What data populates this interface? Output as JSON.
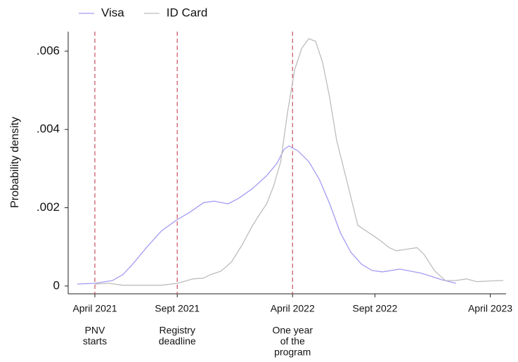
{
  "chart_data": {
    "type": "line",
    "y_label": "Probability density",
    "xlim": [
      2021.115,
      2023.33
    ],
    "ylim": [
      -0.0002,
      0.0065
    ],
    "xticks": [
      {
        "value": 2021.25,
        "label": "April 2021"
      },
      {
        "value": 2021.6667,
        "label": "Sept 2021"
      },
      {
        "value": 2022.25,
        "label": "April 2022"
      },
      {
        "value": 2022.6667,
        "label": "Sept 2022"
      },
      {
        "value": 2023.25,
        "label": "April 2023"
      }
    ],
    "yticks": [
      0,
      {
        "value": 0.002,
        "label": ".002"
      },
      {
        "value": 0.004,
        "label": ".004"
      },
      {
        "value": 0.006,
        "label": ".006"
      }
    ],
    "annotation_color": "#c8505f",
    "annotations": [
      {
        "x": 2021.25,
        "lines": [
          "PNV",
          "starts"
        ]
      },
      {
        "x": 2021.6667,
        "lines": [
          "Registry",
          "deadline"
        ]
      },
      {
        "x": 2022.25,
        "lines": [
          "One year",
          "of the",
          "program"
        ]
      }
    ],
    "series": [
      {
        "name": "Visa",
        "color": "#a39cf2",
        "x": [
          2021.161,
          2021.25,
          2021.339,
          2021.392,
          2021.445,
          2021.516,
          2021.587,
          2021.668,
          2021.729,
          2021.8,
          2021.853,
          2021.924,
          2021.977,
          2022.048,
          2022.119,
          2022.172,
          2022.207,
          2022.232,
          2022.278,
          2022.332,
          2022.385,
          2022.438,
          2022.491,
          2022.544,
          2022.598,
          2022.651,
          2022.704,
          2022.793,
          2022.899,
          2023.005,
          2023.076
        ],
        "values": [
          5e-05,
          7e-05,
          0.00014,
          0.00029,
          0.00058,
          0.00101,
          0.00141,
          0.0017,
          0.00188,
          0.00213,
          0.00217,
          0.0021,
          0.00224,
          0.00249,
          0.00282,
          0.00314,
          0.00349,
          0.00358,
          0.00345,
          0.00318,
          0.00273,
          0.0021,
          0.00137,
          0.00087,
          0.00056,
          0.0004,
          0.00036,
          0.00043,
          0.00033,
          0.00016,
          7e-05
        ]
      },
      {
        "name": "ID Card",
        "color": "#bdbdbd",
        "x": [
          2021.25,
          2021.321,
          2021.392,
          2021.48,
          2021.587,
          2021.668,
          2021.746,
          2021.8,
          2021.835,
          2021.888,
          2021.941,
          2021.995,
          2022.048,
          2022.083,
          2022.119,
          2022.154,
          2022.19,
          2022.225,
          2022.261,
          2022.296,
          2022.332,
          2022.367,
          2022.402,
          2022.438,
          2022.473,
          2022.527,
          2022.58,
          2022.633,
          2022.686,
          2022.739,
          2022.775,
          2022.828,
          2022.88,
          2022.916,
          2022.97,
          2023.023,
          2023.076,
          2023.129,
          2023.183,
          2023.254,
          2023.317
        ],
        "values": [
          5e-05,
          7e-05,
          2e-05,
          2e-05,
          2e-05,
          7e-05,
          0.00018,
          0.0002,
          0.00029,
          0.00038,
          0.00061,
          0.00105,
          0.00155,
          0.00183,
          0.0021,
          0.00255,
          0.00318,
          0.00445,
          0.00553,
          0.00607,
          0.00632,
          0.00625,
          0.00571,
          0.00481,
          0.00372,
          0.00264,
          0.00155,
          0.00137,
          0.00119,
          0.00098,
          0.0009,
          0.00094,
          0.00098,
          0.0008,
          0.00038,
          0.00014,
          0.00014,
          0.00018,
          0.00011,
          0.00013,
          0.00014
        ]
      }
    ]
  }
}
